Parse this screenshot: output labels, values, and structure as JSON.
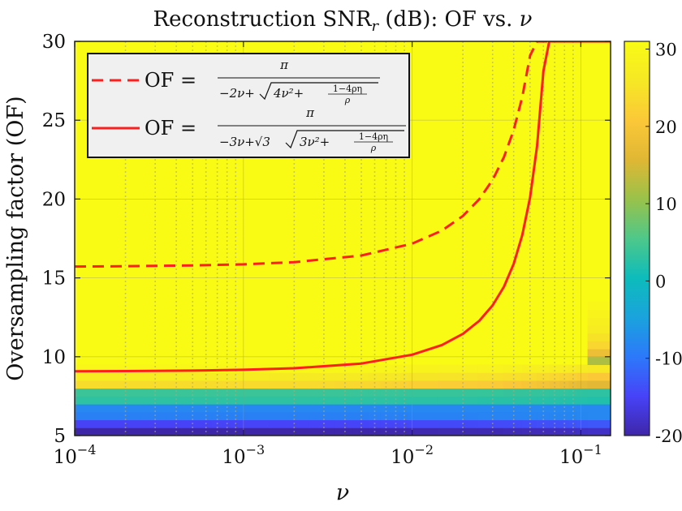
{
  "chart_data": {
    "type": "heatmap",
    "title": "Reconstruction SNR",
    "title_sub": "r",
    "title_rest": " (dB): OF vs. ",
    "title_nu": "ν",
    "xlabel": "ν",
    "ylabel": "Oversampling factor (OF)",
    "xscale": "log",
    "xlim": [
      0.0001,
      0.15
    ],
    "ylim": [
      5,
      30
    ],
    "x_ticks": [
      {
        "value": 0.0001,
        "base": "10",
        "exp": "−4"
      },
      {
        "value": 0.001,
        "base": "10",
        "exp": "−3"
      },
      {
        "value": 0.01,
        "base": "10",
        "exp": "−2"
      },
      {
        "value": 0.1,
        "base": "10",
        "exp": "−1"
      }
    ],
    "y_ticks": [
      5,
      10,
      15,
      20,
      25,
      30
    ],
    "colorbar": {
      "range": [
        -20,
        31
      ],
      "ticks": [
        "30",
        "20",
        "10",
        "0",
        "-10",
        "-20"
      ],
      "tick_values": [
        30,
        20,
        10,
        0,
        -10,
        -20
      ],
      "colormap": [
        "#3e26a8",
        "#4743f8",
        "#2c79fa",
        "#1aa3dd",
        "#0dbcbb",
        "#4ec889",
        "#99c24a",
        "#e0b734",
        "#fbc838",
        "#f6e825",
        "#f9fb15"
      ]
    },
    "heatmap": {
      "of_rows": [
        5.25,
        5.75,
        6.25,
        6.75,
        7.25,
        7.75,
        8.25,
        8.75,
        9.25,
        9.75,
        10.25,
        10.75,
        11.25,
        11.75,
        12.25,
        12.75,
        13.25,
        13.75
      ],
      "x_cols": [
        0.0001,
        0.0002,
        0.0003,
        0.0004,
        0.0005,
        0.0006,
        0.0007,
        0.0008,
        0.0009,
        0.001,
        0.002,
        0.003,
        0.004,
        0.005,
        0.006,
        0.007,
        0.008,
        0.009,
        0.01,
        0.02,
        0.03,
        0.04,
        0.05,
        0.06,
        0.07,
        0.08,
        0.09,
        0.1,
        0.12
      ],
      "row_values": [
        {
          "of": 5.25,
          "left": -20,
          "right": -18
        },
        {
          "of": 5.75,
          "left": -15,
          "right": -13
        },
        {
          "of": 6.25,
          "left": -9,
          "right": -8
        },
        {
          "of": 6.75,
          "left": -8,
          "right": -8
        },
        {
          "of": 7.25,
          "left": 3,
          "right": 2
        },
        {
          "of": 7.75,
          "left": 4,
          "right": 3
        },
        {
          "of": 8.25,
          "left": 24,
          "right": 16
        },
        {
          "of": 8.75,
          "left": 27,
          "right": 21
        },
        {
          "of": 9.25,
          "left": 30,
          "right": 26
        }
      ],
      "right_edge": [
        {
          "of": 9.75,
          "value": 12
        },
        {
          "of": 10.25,
          "value": 18
        },
        {
          "of": 10.75,
          "value": 23
        },
        {
          "of": 11.25,
          "value": 25
        },
        {
          "of": 11.75,
          "value": 27
        },
        {
          "of": 12.25,
          "value": 28
        },
        {
          "of": 12.75,
          "value": 29
        },
        {
          "of": 13.25,
          "value": 30
        }
      ],
      "background_value": 31
    },
    "series": [
      {
        "name": "OF = π / (−2ν + √(4ν² + (1−4ρη)/ρ))",
        "style": "dashed",
        "color": "#ff1e1e",
        "x": [
          0.0001,
          0.0002,
          0.0005,
          0.001,
          0.002,
          0.005,
          0.01,
          0.015,
          0.02,
          0.025,
          0.03,
          0.035,
          0.04,
          0.045,
          0.05,
          0.055,
          0.06,
          0.065,
          0.07,
          0.075,
          0.08
        ],
        "y": [
          15.72,
          15.74,
          15.79,
          15.86,
          16.0,
          16.42,
          17.17,
          18.0,
          18.93,
          19.99,
          21.22,
          22.66,
          24.38,
          26.48,
          29.1,
          30,
          30,
          30,
          30,
          30,
          30
        ]
      },
      {
        "name": "OF = π / (−3ν + √3 √(3ν² + (1−4ρη)/ρ))",
        "style": "solid",
        "color": "#ff1e1e",
        "x": [
          0.0001,
          0.0002,
          0.0005,
          0.001,
          0.002,
          0.005,
          0.01,
          0.015,
          0.02,
          0.025,
          0.03,
          0.035,
          0.04,
          0.045,
          0.05,
          0.055,
          0.06,
          0.065,
          0.07,
          0.075,
          0.08,
          0.09,
          0.1,
          0.12,
          0.15
        ],
        "y": [
          9.08,
          9.09,
          9.12,
          9.17,
          9.27,
          9.57,
          10.13,
          10.74,
          11.45,
          12.28,
          13.26,
          14.44,
          15.89,
          17.72,
          20.11,
          23.37,
          28.11,
          30,
          30,
          30,
          30,
          30,
          30,
          30,
          30
        ]
      }
    ],
    "legend": {
      "position": "top-left",
      "entries": [
        {
          "lhs": "OF =",
          "num": "π",
          "den_pre": "−2ν+",
          "den_rad": "4ν²+",
          "small_num": "1−4ρη",
          "small_den": "ρ"
        },
        {
          "lhs": "OF =",
          "num": "π",
          "den_pre": "−3ν+√3",
          "den_rad": "3ν²+",
          "small_num": "1−4ρη",
          "small_den": "ρ"
        }
      ]
    },
    "grid": true
  }
}
